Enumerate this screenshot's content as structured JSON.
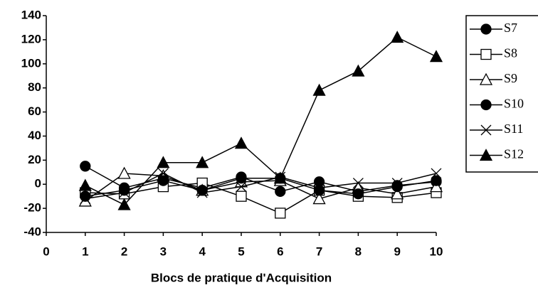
{
  "chart_data": {
    "type": "line",
    "x_label": "Blocs de pratique d'Acquisition",
    "x": [
      1,
      2,
      3,
      4,
      5,
      6,
      7,
      8,
      9,
      10
    ],
    "xlim": [
      0,
      10
    ],
    "xticks": [
      0,
      1,
      2,
      3,
      4,
      5,
      6,
      7,
      8,
      9,
      10
    ],
    "ylim": [
      -40,
      140
    ],
    "yticks": [
      -40,
      -20,
      0,
      20,
      40,
      60,
      80,
      100,
      120,
      140
    ],
    "series": [
      {
        "name": "S7",
        "color": "#000000",
        "marker": "filled-circle",
        "values": [
          15,
          -3,
          5,
          -3,
          6,
          -6,
          2,
          -6,
          -1,
          2
        ]
      },
      {
        "name": "S8",
        "color": "#000000",
        "marker": "open-square",
        "values": [
          -7,
          -8,
          -2,
          1,
          -10,
          -24,
          -5,
          -10,
          -11,
          -7
        ]
      },
      {
        "name": "S9",
        "color": "#000000",
        "marker": "open-triangle",
        "values": [
          -14,
          9,
          7,
          -5,
          2,
          3,
          -12,
          -3,
          -8,
          -2
        ]
      },
      {
        "name": "S10",
        "color": "#000000",
        "marker": "filled-circle",
        "values": [
          -10,
          -5,
          3,
          -5,
          5,
          5,
          -5,
          -8,
          -2,
          3
        ]
      },
      {
        "name": "S11",
        "color": "#000000",
        "marker": "x",
        "values": [
          -12,
          -7,
          9,
          -7,
          -2,
          6,
          -3,
          1,
          1,
          9
        ]
      },
      {
        "name": "S12",
        "color": "#000000",
        "marker": "filled-triangle",
        "values": [
          -1,
          -17,
          18,
          18,
          34,
          5,
          78,
          94,
          122,
          106
        ]
      }
    ]
  }
}
